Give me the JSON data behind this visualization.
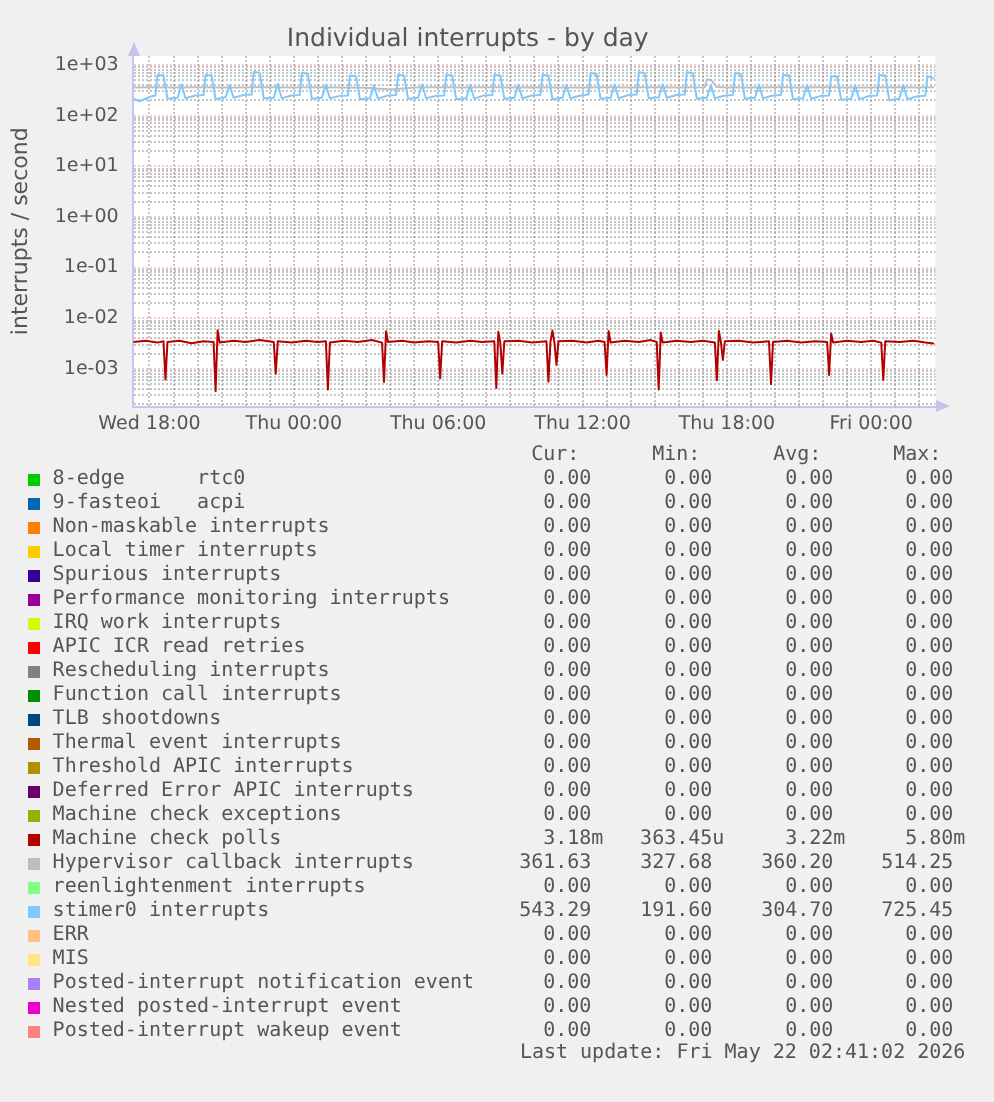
{
  "chart_data": {
    "type": "line",
    "title": "Individual interrupts - by day",
    "ylabel": "interrupts / second",
    "log": true,
    "grid": true,
    "legend": "bottom",
    "xlim": [
      "2026-05-20T17:20",
      "2026-05-22T02:40"
    ],
    "xticks": [
      {
        "value": "2026-05-20T18:00",
        "label": "Wed 18:00"
      },
      {
        "value": "2026-05-20T19:00",
        "label": null
      },
      {
        "value": "2026-05-20T20:00",
        "label": null
      },
      {
        "value": "2026-05-20T21:00",
        "label": null
      },
      {
        "value": "2026-05-20T22:00",
        "label": null
      },
      {
        "value": "2026-05-20T23:00",
        "label": null
      },
      {
        "value": "2026-05-21T00:00",
        "label": "Thu 00:00"
      },
      {
        "value": "2026-05-21T01:00",
        "label": null
      },
      {
        "value": "2026-05-21T02:00",
        "label": null
      },
      {
        "value": "2026-05-21T03:00",
        "label": null
      },
      {
        "value": "2026-05-21T04:00",
        "label": null
      },
      {
        "value": "2026-05-21T05:00",
        "label": null
      },
      {
        "value": "2026-05-21T06:00",
        "label": "Thu 06:00"
      },
      {
        "value": "2026-05-21T07:00",
        "label": null
      },
      {
        "value": "2026-05-21T08:00",
        "label": null
      },
      {
        "value": "2026-05-21T09:00",
        "label": null
      },
      {
        "value": "2026-05-21T10:00",
        "label": null
      },
      {
        "value": "2026-05-21T11:00",
        "label": null
      },
      {
        "value": "2026-05-21T12:00",
        "label": "Thu 12:00"
      },
      {
        "value": "2026-05-21T13:00",
        "label": null
      },
      {
        "value": "2026-05-21T14:00",
        "label": null
      },
      {
        "value": "2026-05-21T15:00",
        "label": null
      },
      {
        "value": "2026-05-21T16:00",
        "label": null
      },
      {
        "value": "2026-05-21T17:00",
        "label": null
      },
      {
        "value": "2026-05-21T18:00",
        "label": "Thu 18:00"
      },
      {
        "value": "2026-05-21T19:00",
        "label": null
      },
      {
        "value": "2026-05-21T20:00",
        "label": null
      },
      {
        "value": "2026-05-21T21:00",
        "label": null
      },
      {
        "value": "2026-05-21T22:00",
        "label": null
      },
      {
        "value": "2026-05-21T23:00",
        "label": null
      },
      {
        "value": "2026-05-22T00:00",
        "label": "Fri 00:00"
      },
      {
        "value": "2026-05-22T01:00",
        "label": null
      },
      {
        "value": "2026-05-22T02:00",
        "label": null
      }
    ],
    "ylim": [
      0.00018,
      1500
    ],
    "yticks": [
      {
        "value": 0.0002,
        "label": null
      },
      {
        "value": 0.0003,
        "label": null
      },
      {
        "value": 0.0004,
        "label": null
      },
      {
        "value": 0.0005,
        "label": null
      },
      {
        "value": 0.0006,
        "label": null
      },
      {
        "value": 0.0007,
        "label": null
      },
      {
        "value": 0.0008,
        "label": null
      },
      {
        "value": 0.0009,
        "label": null
      },
      {
        "value": 0.001,
        "label": "1e-03"
      },
      {
        "value": 0.002,
        "label": null
      },
      {
        "value": 0.003,
        "label": null
      },
      {
        "value": 0.004,
        "label": null
      },
      {
        "value": 0.005,
        "label": null
      },
      {
        "value": 0.006,
        "label": null
      },
      {
        "value": 0.007,
        "label": null
      },
      {
        "value": 0.008,
        "label": null
      },
      {
        "value": 0.009,
        "label": null
      },
      {
        "value": 0.01,
        "label": "1e-02"
      },
      {
        "value": 0.02,
        "label": null
      },
      {
        "value": 0.03,
        "label": null
      },
      {
        "value": 0.04,
        "label": null
      },
      {
        "value": 0.05,
        "label": null
      },
      {
        "value": 0.06,
        "label": null
      },
      {
        "value": 0.07,
        "label": null
      },
      {
        "value": 0.08,
        "label": null
      },
      {
        "value": 0.09,
        "label": null
      },
      {
        "value": 0.1,
        "label": "1e-01"
      },
      {
        "value": 0.2,
        "label": null
      },
      {
        "value": 0.3,
        "label": null
      },
      {
        "value": 0.4,
        "label": null
      },
      {
        "value": 0.5,
        "label": null
      },
      {
        "value": 0.6,
        "label": null
      },
      {
        "value": 0.7,
        "label": null
      },
      {
        "value": 0.8,
        "label": null
      },
      {
        "value": 0.9,
        "label": null
      },
      {
        "value": 1,
        "label": "1e+00"
      },
      {
        "value": 2,
        "label": null
      },
      {
        "value": 3,
        "label": null
      },
      {
        "value": 4,
        "label": null
      },
      {
        "value": 5,
        "label": null
      },
      {
        "value": 6,
        "label": null
      },
      {
        "value": 7,
        "label": null
      },
      {
        "value": 8,
        "label": null
      },
      {
        "value": 9,
        "label": null
      },
      {
        "value": 10,
        "label": "1e+01"
      },
      {
        "value": 20,
        "label": null
      },
      {
        "value": 30,
        "label": null
      },
      {
        "value": 40,
        "label": null
      },
      {
        "value": 50,
        "label": null
      },
      {
        "value": 60,
        "label": null
      },
      {
        "value": 70,
        "label": null
      },
      {
        "value": 80,
        "label": null
      },
      {
        "value": 90,
        "label": null
      },
      {
        "value": 100,
        "label": "1e+02"
      },
      {
        "value": 200,
        "label": null
      },
      {
        "value": 300,
        "label": null
      },
      {
        "value": 400,
        "label": null
      },
      {
        "value": 500,
        "label": null
      },
      {
        "value": 600,
        "label": null
      },
      {
        "value": 700,
        "label": null
      },
      {
        "value": 800,
        "label": null
      },
      {
        "value": 900,
        "label": null
      },
      {
        "value": 1000,
        "label": "1e+03"
      }
    ],
    "series": [
      {
        "name": "8-edge      rtc0",
        "color": "#00cc00"
      },
      {
        "name": "9-fasteoi   acpi",
        "color": "#0066b3"
      },
      {
        "name": "Non-maskable interrupts",
        "color": "#ff8000"
      },
      {
        "name": "Local timer interrupts",
        "color": "#ffcc00"
      },
      {
        "name": "Spurious interrupts",
        "color": "#330099"
      },
      {
        "name": "Performance monitoring interrupts",
        "color": "#990099"
      },
      {
        "name": "IRQ work interrupts",
        "color": "#ccff00"
      },
      {
        "name": "APIC ICR read retries",
        "color": "#ff0000"
      },
      {
        "name": "Rescheduling interrupts",
        "color": "#808080"
      },
      {
        "name": "Function call interrupts",
        "color": "#008f00"
      },
      {
        "name": "TLB shootdowns",
        "color": "#00487d"
      },
      {
        "name": "Thermal event interrupts",
        "color": "#b35a00"
      },
      {
        "name": "Threshold APIC interrupts",
        "color": "#b38f00"
      },
      {
        "name": "Deferred Error APIC interrupts",
        "color": "#6b006b"
      },
      {
        "name": "Machine check exceptions",
        "color": "#8fb300"
      },
      {
        "name": "Machine check polls",
        "color": "#b30000",
        "x": [
          "2026-05-20T17:20",
          "2026-05-20T17:50",
          "2026-05-20T18:20",
          "2026-05-20T18:35",
          "2026-05-20T18:40",
          "2026-05-20T18:45",
          "2026-05-20T19:15",
          "2026-05-20T19:45",
          "2026-05-20T20:15",
          "2026-05-20T20:40",
          "2026-05-20T20:45",
          "2026-05-20T20:50",
          "2026-05-20T20:55",
          "2026-05-20T21:30",
          "2026-05-20T22:00",
          "2026-05-20T22:35",
          "2026-05-20T23:10",
          "2026-05-20T23:15",
          "2026-05-20T23:20",
          "2026-05-20T23:55",
          "2026-05-21T00:30",
          "2026-05-21T01:00",
          "2026-05-21T01:20",
          "2026-05-21T01:25",
          "2026-05-21T01:30",
          "2026-05-21T02:05",
          "2026-05-21T02:40",
          "2026-05-21T03:15",
          "2026-05-21T03:40",
          "2026-05-21T03:45",
          "2026-05-21T03:50",
          "2026-05-21T03:55",
          "2026-05-21T04:30",
          "2026-05-21T05:00",
          "2026-05-21T05:35",
          "2026-05-21T06:00",
          "2026-05-21T06:05",
          "2026-05-21T06:10",
          "2026-05-21T06:45",
          "2026-05-21T07:20",
          "2026-05-21T07:50",
          "2026-05-21T08:20",
          "2026-05-21T08:25",
          "2026-05-21T08:30",
          "2026-05-21T08:35",
          "2026-05-21T08:40",
          "2026-05-21T08:45",
          "2026-05-21T09:20",
          "2026-05-21T09:55",
          "2026-05-21T10:30",
          "2026-05-21T10:35",
          "2026-05-21T10:40",
          "2026-05-21T10:45",
          "2026-05-21T10:50",
          "2026-05-21T10:55",
          "2026-05-21T11:00",
          "2026-05-21T11:35",
          "2026-05-21T12:10",
          "2026-05-21T12:40",
          "2026-05-21T12:55",
          "2026-05-21T13:00",
          "2026-05-21T13:05",
          "2026-05-21T13:10",
          "2026-05-21T13:45",
          "2026-05-21T14:20",
          "2026-05-21T14:50",
          "2026-05-21T15:05",
          "2026-05-21T15:10",
          "2026-05-21T15:15",
          "2026-05-21T15:20",
          "2026-05-21T15:55",
          "2026-05-21T16:30",
          "2026-05-21T17:00",
          "2026-05-21T17:30",
          "2026-05-21T17:35",
          "2026-05-21T17:40",
          "2026-05-21T17:45",
          "2026-05-21T17:50",
          "2026-05-21T17:55",
          "2026-05-21T18:30",
          "2026-05-21T19:05",
          "2026-05-21T19:45",
          "2026-05-21T19:50",
          "2026-05-21T19:55",
          "2026-05-21T20:30",
          "2026-05-21T21:05",
          "2026-05-21T21:40",
          "2026-05-21T22:10",
          "2026-05-21T22:15",
          "2026-05-21T22:20",
          "2026-05-21T22:25",
          "2026-05-21T23:00",
          "2026-05-21T23:35",
          "2026-05-22T00:05",
          "2026-05-22T00:25",
          "2026-05-22T00:30",
          "2026-05-22T00:35",
          "2026-05-22T01:10",
          "2026-05-22T01:45",
          "2026-05-22T02:15",
          "2026-05-22T02:35"
        ],
        "values": [
          0.0034,
          0.0036,
          0.0033,
          0.0035,
          0.00062,
          0.0034,
          0.0036,
          0.0032,
          0.0035,
          0.0034,
          0.000363,
          0.0058,
          0.0033,
          0.0036,
          0.0034,
          0.0037,
          0.0034,
          0.0008,
          0.0035,
          0.0033,
          0.0036,
          0.0034,
          0.0035,
          0.00039,
          0.0033,
          0.0036,
          0.0034,
          0.0037,
          0.0033,
          0.00055,
          0.0055,
          0.0034,
          0.0036,
          0.0033,
          0.0035,
          0.0034,
          0.00065,
          0.0035,
          0.0033,
          0.0036,
          0.0034,
          0.0035,
          0.00042,
          0.0054,
          0.0033,
          0.0008,
          0.0035,
          0.0036,
          0.0033,
          0.0035,
          0.00056,
          0.0034,
          0.0057,
          0.0033,
          0.0012,
          0.0035,
          0.0036,
          0.0033,
          0.0036,
          0.0034,
          0.00076,
          0.0056,
          0.0033,
          0.0036,
          0.0034,
          0.0037,
          0.0034,
          0.00039,
          0.0052,
          0.0033,
          0.0036,
          0.0034,
          0.0036,
          0.0033,
          0.0006,
          0.0056,
          0.0034,
          0.0015,
          0.0035,
          0.0036,
          0.0033,
          0.0035,
          0.0005,
          0.0034,
          0.0036,
          0.0033,
          0.0035,
          0.0034,
          0.00076,
          0.005,
          0.0033,
          0.0036,
          0.0034,
          0.0036,
          0.0033,
          0.0006,
          0.0035,
          0.0034,
          0.0036,
          0.0033,
          0.00318
        ]
      },
      {
        "name": "Hypervisor callback interrupts",
        "color": "#bebebe",
        "x": [
          "2026-05-20T17:20",
          "2026-05-20T18:00",
          "2026-05-20T19:00",
          "2026-05-20T20:00",
          "2026-05-20T21:00",
          "2026-05-20T22:00",
          "2026-05-20T23:00",
          "2026-05-21T00:00",
          "2026-05-21T01:00",
          "2026-05-21T02:00",
          "2026-05-21T03:00",
          "2026-05-21T04:00",
          "2026-05-21T05:00",
          "2026-05-21T06:00",
          "2026-05-21T07:00",
          "2026-05-21T08:00",
          "2026-05-21T09:00",
          "2026-05-21T10:00",
          "2026-05-21T11:00",
          "2026-05-21T12:00",
          "2026-05-21T13:00",
          "2026-05-21T14:00",
          "2026-05-21T15:00",
          "2026-05-21T16:00",
          "2026-05-21T17:05",
          "2026-05-21T17:10",
          "2026-05-21T17:20",
          "2026-05-21T17:35",
          "2026-05-21T18:00",
          "2026-05-21T19:00",
          "2026-05-21T20:00",
          "2026-05-21T21:00",
          "2026-05-21T22:00",
          "2026-05-21T23:00",
          "2026-05-22T00:00",
          "2026-05-22T01:00",
          "2026-05-22T02:00",
          "2026-05-22T02:35"
        ],
        "values": [
          358,
          361,
          359,
          362,
          357,
          360,
          363,
          358,
          361,
          359,
          356,
          327.68,
          360,
          362,
          358,
          361,
          359,
          363,
          357,
          360,
          362,
          358,
          361,
          359,
          362,
          514.25,
          505,
          365,
          360,
          358,
          362,
          359,
          361,
          357,
          360,
          363,
          359,
          361.63
        ]
      },
      {
        "name": "reenlightenment interrupts",
        "color": "#80ff80"
      },
      {
        "name": "stimer0 interrupts",
        "color": "#80c9ff",
        "x": [
          "2026-05-20T17:20",
          "2026-05-20T17:35",
          "2026-05-20T17:50",
          "2026-05-20T18:05",
          "2026-05-20T18:15",
          "2026-05-20T18:20",
          "2026-05-20T18:35",
          "2026-05-20T18:45",
          "2026-05-20T19:10",
          "2026-05-20T19:20",
          "2026-05-20T19:30",
          "2026-05-20T19:55",
          "2026-05-20T20:15",
          "2026-05-20T20:20",
          "2026-05-20T20:35",
          "2026-05-20T20:45",
          "2026-05-20T21:10",
          "2026-05-20T21:20",
          "2026-05-20T21:30",
          "2026-05-20T21:55",
          "2026-05-20T22:15",
          "2026-05-20T22:20",
          "2026-05-20T22:35",
          "2026-05-20T22:45",
          "2026-05-20T23:10",
          "2026-05-20T23:20",
          "2026-05-20T23:30",
          "2026-05-20T23:55",
          "2026-05-21T00:15",
          "2026-05-21T00:20",
          "2026-05-21T00:35",
          "2026-05-21T00:45",
          "2026-05-21T01:10",
          "2026-05-21T01:20",
          "2026-05-21T01:30",
          "2026-05-21T01:55",
          "2026-05-21T02:15",
          "2026-05-21T02:20",
          "2026-05-21T02:35",
          "2026-05-21T02:45",
          "2026-05-21T03:10",
          "2026-05-21T03:20",
          "2026-05-21T03:30",
          "2026-05-21T03:55",
          "2026-05-21T04:15",
          "2026-05-21T04:20",
          "2026-05-21T04:35",
          "2026-05-21T04:45",
          "2026-05-21T05:10",
          "2026-05-21T05:20",
          "2026-05-21T05:30",
          "2026-05-21T05:55",
          "2026-05-21T06:15",
          "2026-05-21T06:20",
          "2026-05-21T06:35",
          "2026-05-21T06:45",
          "2026-05-21T07:10",
          "2026-05-21T07:20",
          "2026-05-21T07:30",
          "2026-05-21T07:55",
          "2026-05-21T08:15",
          "2026-05-21T08:20",
          "2026-05-21T08:35",
          "2026-05-21T08:45",
          "2026-05-21T09:10",
          "2026-05-21T09:20",
          "2026-05-21T09:30",
          "2026-05-21T09:55",
          "2026-05-21T10:15",
          "2026-05-21T10:20",
          "2026-05-21T10:35",
          "2026-05-21T10:45",
          "2026-05-21T11:10",
          "2026-05-21T11:20",
          "2026-05-21T11:30",
          "2026-05-21T11:55",
          "2026-05-21T12:15",
          "2026-05-21T12:20",
          "2026-05-21T12:35",
          "2026-05-21T12:45",
          "2026-05-21T13:10",
          "2026-05-21T13:20",
          "2026-05-21T13:30",
          "2026-05-21T13:55",
          "2026-05-21T14:15",
          "2026-05-21T14:20",
          "2026-05-21T14:35",
          "2026-05-21T14:45",
          "2026-05-21T15:10",
          "2026-05-21T15:20",
          "2026-05-21T15:30",
          "2026-05-21T15:55",
          "2026-05-21T16:15",
          "2026-05-21T16:20",
          "2026-05-21T16:35",
          "2026-05-21T16:45",
          "2026-05-21T17:10",
          "2026-05-21T17:20",
          "2026-05-21T17:30",
          "2026-05-21T17:55",
          "2026-05-21T18:15",
          "2026-05-21T18:20",
          "2026-05-21T18:35",
          "2026-05-21T18:45",
          "2026-05-21T19:10",
          "2026-05-21T19:20",
          "2026-05-21T19:30",
          "2026-05-21T19:55",
          "2026-05-21T20:15",
          "2026-05-21T20:20",
          "2026-05-21T20:35",
          "2026-05-21T20:45",
          "2026-05-21T21:10",
          "2026-05-21T21:20",
          "2026-05-21T21:30",
          "2026-05-21T21:55",
          "2026-05-21T22:15",
          "2026-05-21T22:20",
          "2026-05-21T22:35",
          "2026-05-21T22:45",
          "2026-05-21T23:10",
          "2026-05-21T23:20",
          "2026-05-21T23:30",
          "2026-05-21T23:55",
          "2026-05-22T00:15",
          "2026-05-22T00:20",
          "2026-05-22T00:35",
          "2026-05-22T00:45",
          "2026-05-22T01:10",
          "2026-05-22T01:20",
          "2026-05-22T01:30",
          "2026-05-22T01:55",
          "2026-05-22T02:15",
          "2026-05-22T02:20",
          "2026-05-22T02:35"
        ],
        "values": [
          215,
          191.6,
          215,
          240,
          250,
          630,
          620,
          215,
          225,
          410,
          220,
          250,
          255,
          630,
          615,
          210,
          230,
          400,
          225,
          255,
          260,
          725.45,
          700,
          220,
          225,
          420,
          220,
          250,
          255,
          700,
          670,
          215,
          225,
          405,
          220,
          245,
          250,
          615,
          600,
          210,
          220,
          395,
          215,
          250,
          255,
          630,
          620,
          215,
          225,
          410,
          220,
          245,
          250,
          630,
          615,
          210,
          220,
          400,
          215,
          250,
          255,
          635,
          620,
          215,
          225,
          405,
          220,
          250,
          255,
          635,
          620,
          210,
          225,
          400,
          220,
          250,
          260,
          690,
          660,
          215,
          225,
          410,
          220,
          255,
          260,
          715,
          690,
          220,
          230,
          415,
          225,
          255,
          260,
          720,
          690,
          215,
          225,
          400,
          220,
          250,
          255,
          690,
          665,
          215,
          225,
          410,
          220,
          250,
          255,
          635,
          620,
          210,
          220,
          400,
          215,
          245,
          250,
          600,
          590,
          205,
          215,
          395,
          210,
          245,
          250,
          635,
          610,
          200,
          215,
          400,
          210,
          240,
          245,
          600,
          543.29
        ]
      },
      {
        "name": "ERR",
        "color": "#ffc080"
      },
      {
        "name": "MIS",
        "color": "#ffe680"
      },
      {
        "name": "Posted-interrupt notification event",
        "color": "#aa80ff"
      },
      {
        "name": "Nested posted-interrupt event",
        "color": "#ee00cc"
      },
      {
        "name": "Posted-interrupt wakeup event",
        "color": "#ff8080"
      }
    ],
    "annotations": [
      "Cur:",
      "Min:",
      "Avg:",
      "Max:",
      "0.00",
      "0.00",
      "0.00",
      "0.00",
      "0.00",
      "0.00",
      "0.00",
      "0.00",
      "0.00",
      "0.00",
      "0.00",
      "0.00",
      "0.00",
      "0.00",
      "0.00",
      "0.00",
      "0.00",
      "0.00",
      "0.00",
      "0.00",
      "0.00",
      "0.00",
      "0.00",
      "0.00",
      "0.00",
      "0.00",
      "0.00",
      "0.00",
      "0.00",
      "0.00",
      "0.00",
      "0.00",
      "0.00",
      "0.00",
      "0.00",
      "0.00",
      "0.00",
      "0.00",
      "0.00",
      "0.00",
      "0.00",
      "0.00",
      "0.00",
      "0.00",
      "0.00",
      "0.00",
      "0.00",
      "0.00",
      "0.00",
      "0.00",
      "0.00",
      "0.00",
      "0.00",
      "0.00",
      "0.00",
      "0.00",
      "0.00",
      "0.00",
      "0.00",
      "0.00",
      "3.18m",
      "363.45u",
      "3.22m",
      "5.80m",
      "361.63",
      "327.68",
      "360.20",
      "514.25",
      "0.00",
      "0.00",
      "0.00",
      "0.00",
      "543.29",
      "191.60",
      "304.70",
      "725.45",
      "0.00",
      "0.00",
      "0.00",
      "0.00",
      "0.00",
      "0.00",
      "0.00",
      "0.00",
      "0.00",
      "0.00",
      "0.00",
      "0.00",
      "0.00",
      "0.00",
      "0.00",
      "0.00",
      "0.00",
      "0.00",
      "0.00",
      "0.00",
      "Last update: Fri May 22 02:41:02 2026"
    ]
  }
}
